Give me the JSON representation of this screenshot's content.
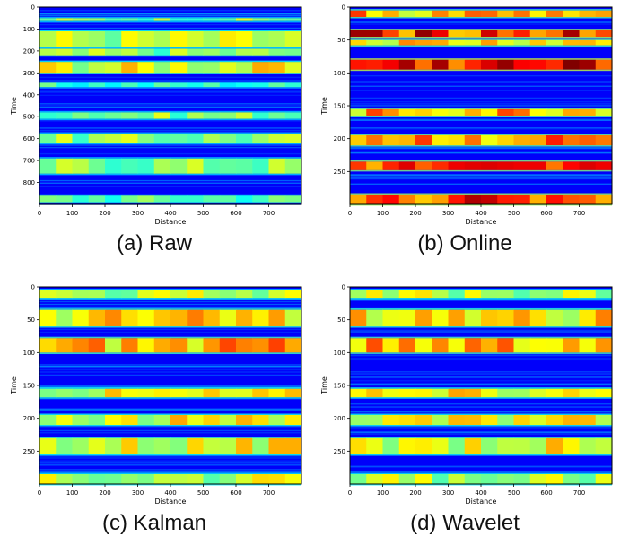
{
  "colors": {
    "frame": "#000000",
    "jet_low": "#00007f",
    "jet_high": "#7f0000"
  },
  "chart_data": [
    {
      "type": "heatmap",
      "caption": "(a) Raw",
      "xlabel": "Distance",
      "ylabel": "Time",
      "xlim": [
        0,
        800
      ],
      "ylim": [
        0,
        900
      ],
      "y_inverted": true,
      "xticks": [
        0,
        100,
        200,
        300,
        400,
        500,
        600,
        700
      ],
      "yticks": [
        0,
        100,
        200,
        300,
        400,
        500,
        600,
        700,
        800
      ],
      "colormap": "jet",
      "bands": [
        {
          "time_start": 50,
          "time_end": 60,
          "intensity": 0.55
        },
        {
          "time_start": 110,
          "time_end": 180,
          "intensity": 0.6
        },
        {
          "time_start": 190,
          "time_end": 220,
          "intensity": 0.55
        },
        {
          "time_start": 250,
          "time_end": 300,
          "intensity": 0.65
        },
        {
          "time_start": 345,
          "time_end": 365,
          "intensity": 0.45
        },
        {
          "time_start": 480,
          "time_end": 510,
          "intensity": 0.55
        },
        {
          "time_start": 580,
          "time_end": 620,
          "intensity": 0.55
        },
        {
          "time_start": 690,
          "time_end": 760,
          "intensity": 0.55
        },
        {
          "time_start": 860,
          "time_end": 890,
          "intensity": 0.5
        }
      ]
    },
    {
      "type": "heatmap",
      "caption": "(b) Online",
      "xlabel": "Distance",
      "ylabel": "Time",
      "xlim": [
        0,
        800
      ],
      "ylim": [
        0,
        300
      ],
      "y_inverted": true,
      "xticks": [
        0,
        100,
        200,
        300,
        400,
        500,
        600,
        700
      ],
      "yticks": [
        0,
        50,
        100,
        150,
        200,
        250
      ],
      "colormap": "jet",
      "bands": [
        {
          "time_start": 5,
          "time_end": 15,
          "intensity": 0.75
        },
        {
          "time_start": 35,
          "time_end": 45,
          "intensity": 0.9
        },
        {
          "time_start": 50,
          "time_end": 58,
          "intensity": 0.7
        },
        {
          "time_start": 80,
          "time_end": 95,
          "intensity": 0.95
        },
        {
          "time_start": 155,
          "time_end": 165,
          "intensity": 0.75
        },
        {
          "time_start": 195,
          "time_end": 210,
          "intensity": 0.8
        },
        {
          "time_start": 235,
          "time_end": 248,
          "intensity": 0.85
        },
        {
          "time_start": 285,
          "time_end": 300,
          "intensity": 0.9
        }
      ]
    },
    {
      "type": "heatmap",
      "caption": "(c) Kalman",
      "xlabel": "Distance",
      "ylabel": "Time",
      "xlim": [
        0,
        800
      ],
      "ylim": [
        0,
        300
      ],
      "y_inverted": true,
      "xticks": [
        0,
        100,
        200,
        300,
        400,
        500,
        600,
        700
      ],
      "yticks": [
        0,
        50,
        100,
        150,
        200,
        250
      ],
      "colormap": "jet",
      "bands": [
        {
          "time_start": 5,
          "time_end": 18,
          "intensity": 0.6
        },
        {
          "time_start": 35,
          "time_end": 60,
          "intensity": 0.7
        },
        {
          "time_start": 78,
          "time_end": 100,
          "intensity": 0.75
        },
        {
          "time_start": 155,
          "time_end": 168,
          "intensity": 0.65
        },
        {
          "time_start": 195,
          "time_end": 210,
          "intensity": 0.65
        },
        {
          "time_start": 230,
          "time_end": 255,
          "intensity": 0.65
        },
        {
          "time_start": 285,
          "time_end": 300,
          "intensity": 0.6
        }
      ]
    },
    {
      "type": "heatmap",
      "caption": "(d) Wavelet",
      "xlabel": "Distance",
      "ylabel": "Time",
      "xlim": [
        0,
        800
      ],
      "ylim": [
        0,
        300
      ],
      "y_inverted": true,
      "xticks": [
        0,
        100,
        200,
        300,
        400,
        500,
        600,
        700
      ],
      "yticks": [
        0,
        50,
        100,
        150,
        200,
        250
      ],
      "colormap": "jet",
      "bands": [
        {
          "time_start": 5,
          "time_end": 18,
          "intensity": 0.6
        },
        {
          "time_start": 35,
          "time_end": 60,
          "intensity": 0.7
        },
        {
          "time_start": 78,
          "time_end": 100,
          "intensity": 0.75
        },
        {
          "time_start": 155,
          "time_end": 168,
          "intensity": 0.65
        },
        {
          "time_start": 195,
          "time_end": 210,
          "intensity": 0.65
        },
        {
          "time_start": 230,
          "time_end": 255,
          "intensity": 0.65
        },
        {
          "time_start": 285,
          "time_end": 300,
          "intensity": 0.6
        }
      ]
    }
  ]
}
